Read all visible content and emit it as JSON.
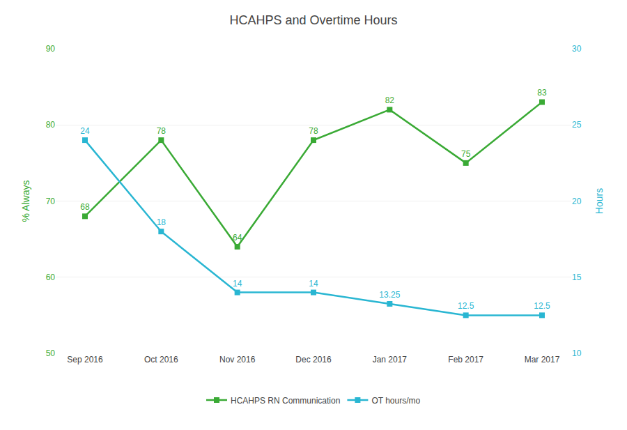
{
  "chart_data": {
    "type": "line",
    "title": "HCAHPS and Overtime Hours",
    "categories": [
      "Sep 2016",
      "Oct 2016",
      "Nov 2016",
      "Dec 2016",
      "Jan 2017",
      "Feb 2017",
      "Mar 2017"
    ],
    "series": [
      {
        "name": "HCAHPS RN Communication",
        "color": "#3aaa35",
        "marker": "square",
        "values": [
          68,
          78,
          64,
          78,
          82,
          75,
          83
        ]
      },
      {
        "name": "OT hours/mo",
        "color": "#29b6d2",
        "marker": "square",
        "axis": "y2",
        "values": [
          24,
          18,
          14,
          14,
          13.25,
          12.5,
          12.5
        ]
      }
    ],
    "ylabel": "% Always",
    "y2label": "Hours",
    "ylim": [
      50,
      90
    ],
    "yticks": [
      50,
      60,
      70,
      80,
      90
    ],
    "y2lim": [
      10,
      30
    ],
    "y2ticks": [
      10,
      15,
      20,
      25,
      30
    ],
    "grid": true,
    "legend": "bottom",
    "data_labels": true
  }
}
